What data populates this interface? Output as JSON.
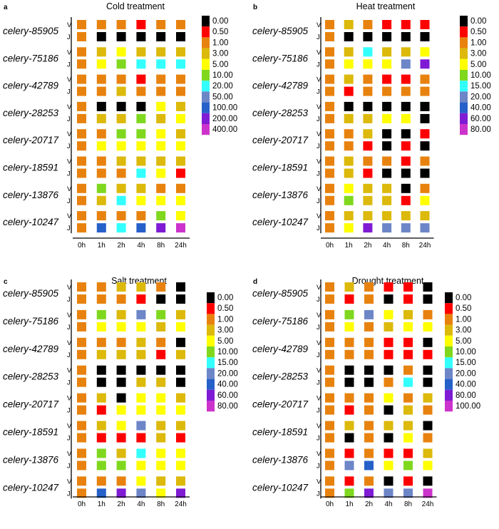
{
  "figure": {
    "genes": [
      "celery-85905",
      "celery-75186",
      "celery-42789",
      "celery-28253",
      "celery-20717",
      "celery-18591",
      "celery-13876",
      "celery-10247"
    ],
    "rows": [
      "V",
      "J"
    ],
    "timepoints": [
      "0h",
      "1h",
      "2h",
      "4h",
      "8h",
      "24h"
    ]
  },
  "chart_data": [
    {
      "panel": "a",
      "type": "heatmap",
      "title": "Cold treatment",
      "legend": {
        "labels": [
          "0.00",
          "0.50",
          "1.00",
          "3.00",
          "5.00",
          "10.00",
          "20.00",
          "50.00",
          "100.00",
          "200.00",
          "400.00"
        ],
        "colors": [
          "#000000",
          "#ff0000",
          "#e8820e",
          "#dcb90a",
          "#ffff00",
          "#7fd81e",
          "#33ffff",
          "#6d86c8",
          "#2660c9",
          "#7f1bd4",
          "#cc33cc"
        ]
      },
      "matrix": [
        [
          [
            2,
            2,
            2,
            1,
            2,
            2
          ],
          [
            2,
            0,
            0,
            0,
            0,
            0
          ]
        ],
        [
          [
            2,
            3,
            4,
            3,
            3,
            3
          ],
          [
            2,
            4,
            5,
            6,
            6,
            6
          ]
        ],
        [
          [
            2,
            2,
            2,
            1,
            2,
            2
          ],
          [
            2,
            2,
            3,
            2,
            2,
            2
          ]
        ],
        [
          [
            2,
            0,
            0,
            0,
            4,
            3
          ],
          [
            2,
            3,
            3,
            5,
            3,
            4
          ]
        ],
        [
          [
            2,
            2,
            5,
            5,
            4,
            3
          ],
          [
            2,
            4,
            4,
            4,
            4,
            4
          ]
        ],
        [
          [
            2,
            2,
            3,
            3,
            3,
            3
          ],
          [
            2,
            2,
            2,
            6,
            4,
            1
          ]
        ],
        [
          [
            2,
            5,
            3,
            3,
            2,
            2
          ],
          [
            2,
            3,
            6,
            4,
            4,
            4
          ]
        ],
        [
          [
            2,
            2,
            2,
            2,
            5,
            4
          ],
          [
            2,
            8,
            6,
            8,
            9,
            10
          ]
        ]
      ]
    },
    {
      "panel": "b",
      "type": "heatmap",
      "title": "Heat treatment",
      "legend": {
        "labels": [
          "0.00",
          "0.50",
          "1.00",
          "3.00",
          "5.00",
          "10.00",
          "15.00",
          "20.00",
          "40.00",
          "60.00",
          "80.00"
        ],
        "colors": [
          "#000000",
          "#ff0000",
          "#e8820e",
          "#dcb90a",
          "#ffff00",
          "#7fd81e",
          "#33ffff",
          "#6d86c8",
          "#2660c9",
          "#7f1bd4",
          "#cc33cc"
        ]
      },
      "matrix": [
        [
          [
            2,
            3,
            2,
            1,
            1,
            1
          ],
          [
            2,
            0,
            0,
            0,
            0,
            0
          ]
        ],
        [
          [
            2,
            3,
            6,
            3,
            3,
            4
          ],
          [
            2,
            4,
            4,
            4,
            7,
            9
          ]
        ],
        [
          [
            2,
            3,
            2,
            1,
            1,
            2
          ],
          [
            2,
            1,
            2,
            2,
            2,
            2
          ]
        ],
        [
          [
            2,
            0,
            0,
            0,
            0,
            0
          ],
          [
            2,
            3,
            3,
            4,
            4,
            0
          ]
        ],
        [
          [
            2,
            2,
            3,
            0,
            0,
            1
          ],
          [
            2,
            2,
            1,
            0,
            1,
            0
          ]
        ],
        [
          [
            2,
            3,
            2,
            2,
            1,
            2
          ],
          [
            2,
            3,
            1,
            0,
            0,
            0
          ]
        ],
        [
          [
            2,
            4,
            3,
            3,
            0,
            2
          ],
          [
            2,
            5,
            3,
            3,
            1,
            4
          ]
        ],
        [
          [
            2,
            3,
            3,
            3,
            3,
            3
          ],
          [
            2,
            4,
            9,
            7,
            7,
            7
          ]
        ]
      ]
    },
    {
      "panel": "c",
      "type": "heatmap",
      "title": "Salt treatment",
      "legend": {
        "labels": [
          "0.00",
          "0.50",
          "1.00",
          "3.00",
          "5.00",
          "10.00",
          "15.00",
          "20.00",
          "40.00",
          "60.00",
          "80.00"
        ],
        "colors": [
          "#000000",
          "#ff0000",
          "#e8820e",
          "#dcb90a",
          "#ffff00",
          "#7fd81e",
          "#33ffff",
          "#6d86c8",
          "#2660c9",
          "#7f1bd4",
          "#cc33cc"
        ]
      },
      "matrix": [
        [
          [
            2,
            2,
            3,
            3,
            2,
            0
          ],
          [
            2,
            2,
            2,
            1,
            0,
            0
          ]
        ],
        [
          [
            2,
            5,
            3,
            7,
            5,
            3
          ],
          [
            2,
            4,
            4,
            4,
            3,
            4
          ]
        ],
        [
          [
            2,
            2,
            2,
            3,
            2,
            0
          ],
          [
            2,
            3,
            3,
            3,
            1,
            3
          ]
        ],
        [
          [
            2,
            0,
            0,
            0,
            0,
            0
          ],
          [
            2,
            0,
            0,
            3,
            3,
            0
          ]
        ],
        [
          [
            2,
            3,
            0,
            4,
            4,
            3
          ],
          [
            2,
            1,
            4,
            4,
            4,
            4
          ]
        ],
        [
          [
            2,
            3,
            4,
            7,
            3,
            3
          ],
          [
            2,
            1,
            1,
            1,
            3,
            1
          ]
        ],
        [
          [
            2,
            5,
            3,
            6,
            4,
            4
          ],
          [
            2,
            5,
            5,
            4,
            4,
            4
          ]
        ],
        [
          [
            2,
            2,
            2,
            4,
            3,
            3
          ],
          [
            2,
            8,
            9,
            7,
            4,
            9
          ]
        ]
      ]
    },
    {
      "panel": "d",
      "type": "heatmap",
      "title": "Drought  treatment",
      "legend": {
        "labels": [
          "0.00",
          "0.50",
          "1.00",
          "3.00",
          "5.00",
          "10.00",
          "15.00",
          "20.00",
          "40.00",
          "80.00",
          "100.00"
        ],
        "colors": [
          "#000000",
          "#ff0000",
          "#e8820e",
          "#dcb90a",
          "#ffff00",
          "#7fd81e",
          "#33ffff",
          "#6d86c8",
          "#2660c9",
          "#7f1bd4",
          "#cc33cc"
        ]
      },
      "matrix": [
        [
          [
            2,
            3,
            2,
            1,
            1,
            0
          ],
          [
            2,
            1,
            2,
            0,
            1,
            0
          ]
        ],
        [
          [
            2,
            5,
            7,
            4,
            3,
            2
          ],
          [
            2,
            4,
            2,
            3,
            4,
            4
          ]
        ],
        [
          [
            2,
            2,
            2,
            1,
            1,
            0
          ],
          [
            2,
            2,
            2,
            1,
            1,
            1
          ]
        ],
        [
          [
            2,
            0,
            0,
            0,
            2,
            0
          ],
          [
            2,
            0,
            0,
            2,
            6,
            0
          ]
        ],
        [
          [
            2,
            2,
            2,
            4,
            2,
            3
          ],
          [
            2,
            1,
            2,
            0,
            3,
            2
          ]
        ],
        [
          [
            2,
            3,
            2,
            3,
            3,
            0
          ],
          [
            2,
            0,
            2,
            0,
            4,
            2
          ]
        ],
        [
          [
            2,
            1,
            2,
            1,
            1,
            3
          ],
          [
            2,
            7,
            8,
            4,
            5,
            4
          ]
        ],
        [
          [
            2,
            1,
            2,
            0,
            1,
            0
          ],
          [
            2,
            5,
            9,
            7,
            7,
            10
          ]
        ]
      ]
    }
  ]
}
